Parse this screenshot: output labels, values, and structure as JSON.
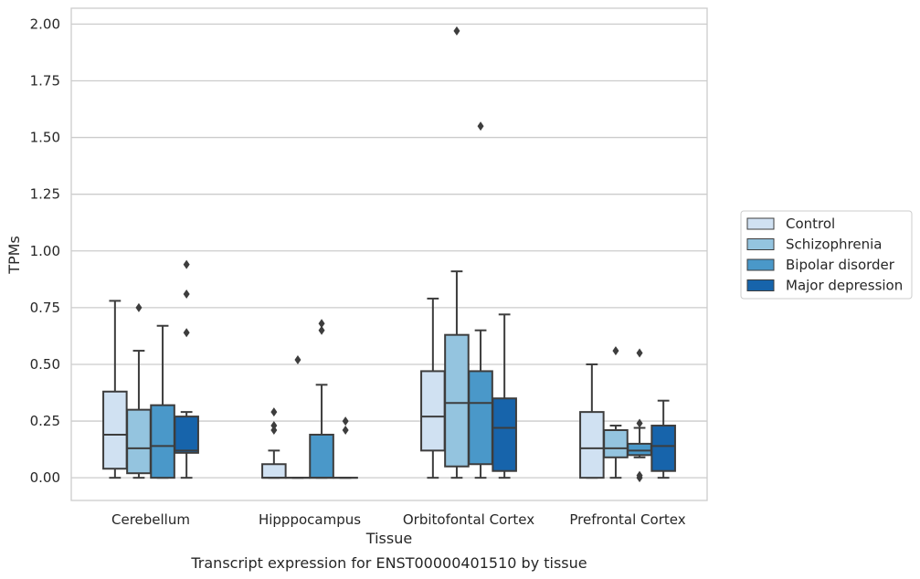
{
  "chart_data": {
    "type": "boxplot",
    "title": "Transcript expression for ENST00000401510 by tissue",
    "xlabel": "Tissue",
    "ylabel": "TPMs",
    "ylim": [
      -0.1,
      2.07
    ],
    "yticks": [
      0.0,
      0.25,
      0.5,
      0.75,
      1.0,
      1.25,
      1.5,
      1.75,
      2.0
    ],
    "ytick_labels": [
      "0.00",
      "0.25",
      "0.50",
      "0.75",
      "1.00",
      "1.25",
      "1.50",
      "1.75",
      "2.00"
    ],
    "grid": "horizontal",
    "legend_position": "right",
    "categories": [
      "Cerebellum",
      "Hipppocampus",
      "Orbitofontal Cortex",
      "Prefrontal Cortex"
    ],
    "series": [
      {
        "name": "Control",
        "color": "#d0e1f2",
        "boxes": [
          {
            "whislo": 0.0,
            "q1": 0.04,
            "med": 0.19,
            "q3": 0.38,
            "whishi": 0.78,
            "fliers": []
          },
          {
            "whislo": 0.0,
            "q1": 0.0,
            "med": 0.0,
            "q3": 0.06,
            "whishi": 0.12,
            "fliers": [
              0.21,
              0.23,
              0.29
            ]
          },
          {
            "whislo": 0.0,
            "q1": 0.12,
            "med": 0.27,
            "q3": 0.47,
            "whishi": 0.79,
            "fliers": []
          },
          {
            "whislo": 0.0,
            "q1": 0.0,
            "med": 0.13,
            "q3": 0.29,
            "whishi": 0.5,
            "fliers": []
          }
        ]
      },
      {
        "name": "Schizophrenia",
        "color": "#94c4df",
        "boxes": [
          {
            "whislo": 0.0,
            "q1": 0.02,
            "med": 0.13,
            "q3": 0.3,
            "whishi": 0.56,
            "fliers": [
              0.75
            ]
          },
          {
            "whislo": 0.0,
            "q1": 0.0,
            "med": 0.0,
            "q3": 0.0,
            "whishi": 0.0,
            "fliers": [
              0.52
            ]
          },
          {
            "whislo": 0.0,
            "q1": 0.05,
            "med": 0.33,
            "q3": 0.63,
            "whishi": 0.91,
            "fliers": [
              1.97
            ]
          },
          {
            "whislo": 0.0,
            "q1": 0.09,
            "med": 0.13,
            "q3": 0.21,
            "whishi": 0.23,
            "fliers": [
              0.56
            ]
          }
        ]
      },
      {
        "name": "Bipolar disorder",
        "color": "#4a98c9",
        "boxes": [
          {
            "whislo": 0.0,
            "q1": 0.0,
            "med": 0.14,
            "q3": 0.32,
            "whishi": 0.67,
            "fliers": []
          },
          {
            "whislo": 0.0,
            "q1": 0.0,
            "med": 0.0,
            "q3": 0.19,
            "whishi": 0.41,
            "fliers": [
              0.65,
              0.68
            ]
          },
          {
            "whislo": 0.0,
            "q1": 0.06,
            "med": 0.33,
            "q3": 0.47,
            "whishi": 0.65,
            "fliers": [
              1.55
            ]
          },
          {
            "whislo": 0.09,
            "q1": 0.1,
            "med": 0.12,
            "q3": 0.15,
            "whishi": 0.22,
            "fliers": [
              0.24,
              0.55,
              0.0,
              0.01
            ]
          }
        ]
      },
      {
        "name": "Major depression",
        "color": "#1764ab",
        "boxes": [
          {
            "whislo": 0.0,
            "q1": 0.11,
            "med": 0.12,
            "q3": 0.27,
            "whishi": 0.29,
            "fliers": [
              0.64,
              0.81,
              0.94
            ]
          },
          {
            "whislo": 0.0,
            "q1": 0.0,
            "med": 0.0,
            "q3": 0.0,
            "whishi": 0.0,
            "fliers": [
              0.21,
              0.25
            ]
          },
          {
            "whislo": 0.0,
            "q1": 0.03,
            "med": 0.22,
            "q3": 0.35,
            "whishi": 0.72,
            "fliers": []
          },
          {
            "whislo": 0.0,
            "q1": 0.03,
            "med": 0.14,
            "q3": 0.23,
            "whishi": 0.34,
            "fliers": []
          }
        ]
      }
    ]
  }
}
